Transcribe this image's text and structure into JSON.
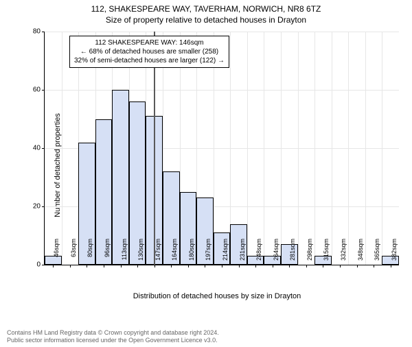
{
  "titles": {
    "line1": "112, SHAKESPEARE WAY, TAVERHAM, NORWICH, NR8 6TZ",
    "line2": "Size of property relative to detached houses in Drayton"
  },
  "labels": {
    "y": "Number of detached properties",
    "x": "Distribution of detached houses by size in Drayton"
  },
  "annotation": {
    "line1": "112 SHAKESPEARE WAY: 146sqm",
    "line2": "← 68% of detached houses are smaller (258)",
    "line3": "32% of semi-detached houses are larger (122) →"
  },
  "footer": {
    "line1": "Contains HM Land Registry data © Crown copyright and database right 2024.",
    "line2": "Public sector information licensed under the Open Government Licence v3.0."
  },
  "chart": {
    "type": "histogram",
    "ylim": [
      0,
      80
    ],
    "ytick_step": 20,
    "yticks": [
      0,
      20,
      40,
      60,
      80
    ],
    "x_unit": "sqm",
    "categories": [
      46,
      63,
      80,
      96,
      113,
      130,
      147,
      164,
      180,
      197,
      214,
      231,
      248,
      264,
      281,
      298,
      315,
      332,
      348,
      365,
      382
    ],
    "values": [
      3,
      0,
      42,
      50,
      60,
      56,
      51,
      32,
      25,
      23,
      11,
      14,
      3,
      3,
      7,
      0,
      3,
      0,
      0,
      0,
      3
    ],
    "bar_fill": "#d6e0f5",
    "bar_stroke": "#000000",
    "bar_stroke_width": 0.5,
    "grid_color": "#e6e6e6",
    "background": "#ffffff",
    "marker_x": 146,
    "marker_color": "#595959",
    "label_fontsize": 11,
    "tick_fontsize": 10,
    "title_fontsize": 12,
    "anno_fontsize": 10
  }
}
